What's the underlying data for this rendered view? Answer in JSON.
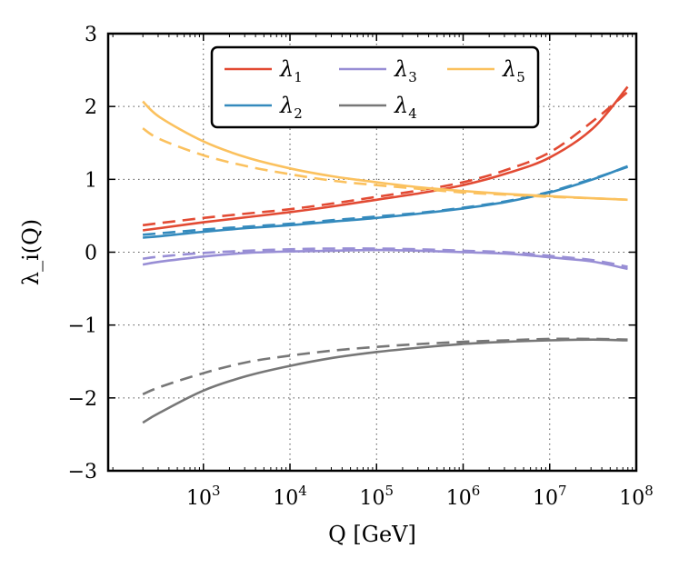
{
  "chart_data": {
    "type": "line",
    "x_scale": "log10",
    "xlim_log10": [
      1.9,
      8.0
    ],
    "ylim": [
      -3,
      3
    ],
    "xlabel": "Q [GeV]",
    "ylabel": "λ_i(Q)",
    "x_tick_labels": [
      {
        "log10": 3,
        "base": "10",
        "exp": "3"
      },
      {
        "log10": 4,
        "base": "10",
        "exp": "4"
      },
      {
        "log10": 5,
        "base": "10",
        "exp": "5"
      },
      {
        "log10": 6,
        "base": "10",
        "exp": "6"
      },
      {
        "log10": 7,
        "base": "10",
        "exp": "7"
      },
      {
        "log10": 8,
        "base": "10",
        "exp": "8"
      }
    ],
    "y_ticks": [
      -3,
      -2,
      -1,
      0,
      1,
      2,
      3
    ],
    "y_tick_labels": [
      "−3",
      "−2",
      "−1",
      "0",
      "1",
      "2",
      "3"
    ],
    "grid": true,
    "legend_position": "top-center",
    "x_log10": [
      2.3,
      2.5,
      3.0,
      3.5,
      4.0,
      4.5,
      5.0,
      5.5,
      6.0,
      6.5,
      7.0,
      7.5,
      7.9
    ],
    "series": [
      {
        "name": "λ1",
        "base": "λ",
        "sub": "1",
        "color": "#e24a33",
        "style": "solid",
        "values": [
          0.3,
          0.33,
          0.41,
          0.48,
          0.55,
          0.63,
          0.72,
          0.81,
          0.92,
          1.08,
          1.3,
          1.7,
          2.27
        ]
      },
      {
        "name": "λ1 dashed",
        "base": "λ",
        "sub": "1",
        "color": "#e24a33",
        "style": "dashed",
        "values": [
          0.37,
          0.4,
          0.47,
          0.53,
          0.59,
          0.67,
          0.76,
          0.85,
          0.96,
          1.13,
          1.37,
          1.8,
          2.2
        ]
      },
      {
        "name": "λ2",
        "base": "λ",
        "sub": "2",
        "color": "#348abd",
        "style": "solid",
        "values": [
          0.2,
          0.22,
          0.28,
          0.33,
          0.37,
          0.42,
          0.47,
          0.53,
          0.6,
          0.69,
          0.82,
          1.0,
          1.18
        ]
      },
      {
        "name": "λ2 dashed",
        "base": "λ",
        "sub": "2",
        "color": "#348abd",
        "style": "dashed",
        "values": [
          0.24,
          0.26,
          0.31,
          0.35,
          0.39,
          0.44,
          0.49,
          0.54,
          0.61,
          0.7,
          0.83,
          1.01,
          1.17
        ]
      },
      {
        "name": "λ3",
        "base": "λ",
        "sub": "3",
        "color": "#988ed5",
        "style": "solid",
        "values": [
          -0.17,
          -0.13,
          -0.06,
          -0.01,
          0.01,
          0.02,
          0.03,
          0.02,
          0.0,
          -0.02,
          -0.07,
          -0.13,
          -0.23
        ]
      },
      {
        "name": "λ3 dashed",
        "base": "λ",
        "sub": "3",
        "color": "#988ed5",
        "style": "dashed",
        "values": [
          -0.09,
          -0.06,
          -0.01,
          0.02,
          0.04,
          0.05,
          0.05,
          0.04,
          0.02,
          0.0,
          -0.05,
          -0.11,
          -0.2
        ]
      },
      {
        "name": "λ4",
        "base": "λ",
        "sub": "4",
        "color": "#777777",
        "style": "solid",
        "values": [
          -2.34,
          -2.2,
          -1.9,
          -1.7,
          -1.56,
          -1.45,
          -1.37,
          -1.31,
          -1.26,
          -1.23,
          -1.21,
          -1.2,
          -1.21
        ]
      },
      {
        "name": "λ4 dashed",
        "base": "λ",
        "sub": "4",
        "color": "#777777",
        "style": "dashed",
        "values": [
          -1.95,
          -1.85,
          -1.66,
          -1.51,
          -1.42,
          -1.35,
          -1.3,
          -1.26,
          -1.23,
          -1.21,
          -1.19,
          -1.19,
          -1.2
        ]
      },
      {
        "name": "λ5",
        "base": "λ",
        "sub": "5",
        "color": "#fbc15e",
        "style": "solid",
        "values": [
          2.07,
          1.85,
          1.52,
          1.3,
          1.15,
          1.04,
          0.96,
          0.89,
          0.84,
          0.8,
          0.77,
          0.74,
          0.72
        ]
      },
      {
        "name": "λ5 dashed",
        "base": "λ",
        "sub": "5",
        "color": "#fbc15e",
        "style": "dashed",
        "values": [
          1.7,
          1.55,
          1.33,
          1.18,
          1.07,
          0.98,
          0.92,
          0.87,
          0.82,
          0.79,
          0.76,
          0.74,
          0.72
        ]
      }
    ],
    "legend": [
      {
        "base": "λ",
        "sub": "1",
        "color": "#e24a33"
      },
      {
        "base": "λ",
        "sub": "2",
        "color": "#348abd"
      },
      {
        "base": "λ",
        "sub": "3",
        "color": "#988ed5"
      },
      {
        "base": "λ",
        "sub": "4",
        "color": "#777777"
      },
      {
        "base": "λ",
        "sub": "5",
        "color": "#fbc15e"
      }
    ]
  }
}
